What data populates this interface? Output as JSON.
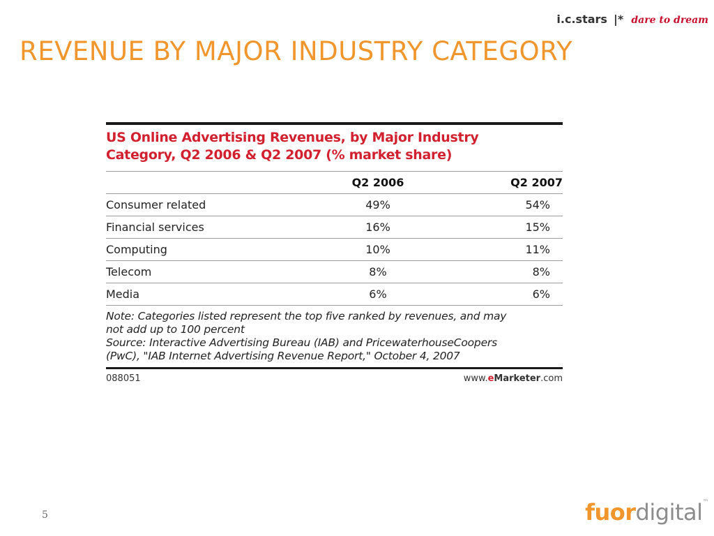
{
  "header": {
    "org": "i.c.stars",
    "separator": "|*",
    "tagline": "dare to dream"
  },
  "slide": {
    "title": "REVENUE BY MAJOR INDUSTRY CATEGORY",
    "page_number": "5"
  },
  "figure": {
    "title_line1": "US Online Advertising Revenues, by Major Industry",
    "title_line2": "Category, Q2 2006 & Q2 2007 (% market share)",
    "columns": [
      "",
      "Q2 2006",
      "Q2 2007"
    ],
    "rows": [
      {
        "category": "Consumer related",
        "q2_2006": "49%",
        "q2_2007": "54%"
      },
      {
        "category": "Financial services",
        "q2_2006": "16%",
        "q2_2007": "15%"
      },
      {
        "category": "Computing",
        "q2_2006": "10%",
        "q2_2007": "11%"
      },
      {
        "category": "Telecom",
        "q2_2006": "8%",
        "q2_2007": "8%"
      },
      {
        "category": "Media",
        "q2_2006": "6%",
        "q2_2007": "6%"
      }
    ],
    "note_line1": "Note: Categories listed represent the top five ranked by revenues, and may",
    "note_line2": "not add up to 100 percent",
    "source_line1": "Source: Interactive Advertising Bureau (IAB) and PricewaterhouseCoopers",
    "source_line2": "(PwC), \"IAB Internet Advertising Revenue Report,\" October 4, 2007",
    "footer_id": "088051",
    "footer_site_pre": "www.",
    "footer_site_e": "e",
    "footer_site_brand": "Marketer",
    "footer_site_post": ".com"
  },
  "logo": {
    "part1": "fuor",
    "part2": "digital",
    "tm": "™"
  },
  "colors": {
    "title_orange": "#f0962d",
    "figure_red": "#d2202f",
    "tagline_red": "#c8102e"
  }
}
